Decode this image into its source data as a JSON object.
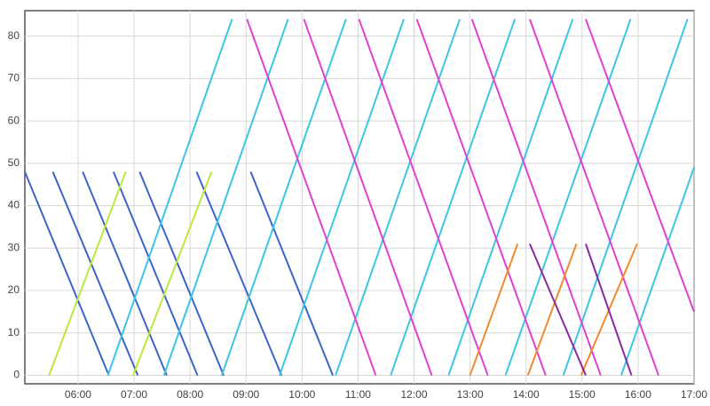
{
  "chart_data": {
    "type": "line",
    "grid": true,
    "xlim": [
      303,
      1020
    ],
    "ylim": [
      -2,
      86
    ],
    "xticks": [
      {
        "value": 360,
        "label": "06:00"
      },
      {
        "value": 420,
        "label": "07:00"
      },
      {
        "value": 480,
        "label": "08:00"
      },
      {
        "value": 540,
        "label": "09:00"
      },
      {
        "value": 600,
        "label": "10:00"
      },
      {
        "value": 660,
        "label": "11:00"
      },
      {
        "value": 720,
        "label": "12:00"
      },
      {
        "value": 780,
        "label": "13:00"
      },
      {
        "value": 840,
        "label": "14:00"
      },
      {
        "value": 900,
        "label": "15:00"
      },
      {
        "value": 960,
        "label": "16:00"
      },
      {
        "value": 1020,
        "label": "17:00"
      }
    ],
    "yticks": [
      0,
      10,
      20,
      30,
      40,
      50,
      60,
      70,
      80
    ],
    "series": [
      {
        "color": "#3f63c8",
        "x": [
          303,
          393
        ],
        "values": [
          48,
          0
        ]
      },
      {
        "color": "#3f63c8",
        "x": [
          333,
          424
        ],
        "values": [
          48,
          0
        ]
      },
      {
        "color": "#3f63c8",
        "x": [
          365,
          455
        ],
        "values": [
          48,
          0
        ]
      },
      {
        "color": "#3f63c8",
        "x": [
          398,
          488
        ],
        "values": [
          48,
          0
        ]
      },
      {
        "color": "#3f63c8",
        "x": [
          426,
          516
        ],
        "values": [
          48,
          0
        ]
      },
      {
        "color": "#3f63c8",
        "x": [
          487,
          578
        ],
        "values": [
          48,
          0
        ]
      },
      {
        "color": "#3f63c8",
        "x": [
          545,
          633
        ],
        "values": [
          48,
          0
        ]
      },
      {
        "color": "#3cc6e2",
        "x": [
          392,
          525
        ],
        "values": [
          0,
          84
        ]
      },
      {
        "color": "#3cc6e2",
        "x": [
          452,
          585
        ],
        "values": [
          0,
          84
        ]
      },
      {
        "color": "#3cc6e2",
        "x": [
          514,
          647
        ],
        "values": [
          0,
          84
        ]
      },
      {
        "color": "#3cc6e2",
        "x": [
          576,
          709
        ],
        "values": [
          0,
          84
        ]
      },
      {
        "color": "#3cc6e2",
        "x": [
          636,
          769
        ],
        "values": [
          0,
          84
        ]
      },
      {
        "color": "#3cc6e2",
        "x": [
          695,
          828
        ],
        "values": [
          0,
          84
        ]
      },
      {
        "color": "#3cc6e2",
        "x": [
          757,
          890
        ],
        "values": [
          0,
          84
        ]
      },
      {
        "color": "#3cc6e2",
        "x": [
          818,
          952
        ],
        "values": [
          0,
          84
        ]
      },
      {
        "color": "#3cc6e2",
        "x": [
          880,
          1013
        ],
        "values": [
          0,
          84
        ]
      },
      {
        "color": "#3cc6e2",
        "x": [
          942,
          1020
        ],
        "values": [
          0,
          49
        ]
      },
      {
        "color": "#e040d2",
        "x": [
          541,
          679
        ],
        "values": [
          84,
          0
        ]
      },
      {
        "color": "#e040d2",
        "x": [
          602,
          739
        ],
        "values": [
          84,
          0
        ]
      },
      {
        "color": "#e040d2",
        "x": [
          661,
          799
        ],
        "values": [
          84,
          0
        ]
      },
      {
        "color": "#e040d2",
        "x": [
          723,
          861
        ],
        "values": [
          84,
          0
        ]
      },
      {
        "color": "#e040d2",
        "x": [
          782,
          920
        ],
        "values": [
          84,
          0
        ]
      },
      {
        "color": "#e040d2",
        "x": [
          844,
          982
        ],
        "values": [
          84,
          0
        ]
      },
      {
        "color": "#e040d2",
        "x": [
          904,
          1020
        ],
        "values": [
          84,
          15
        ]
      },
      {
        "color": "#bde83a",
        "x": [
          329,
          411
        ],
        "values": [
          0,
          48
        ]
      },
      {
        "color": "#bde83a",
        "x": [
          419,
          503
        ],
        "values": [
          0,
          48
        ]
      },
      {
        "color": "#f08a30",
        "x": [
          780,
          831
        ],
        "values": [
          0,
          31
        ]
      },
      {
        "color": "#f08a30",
        "x": [
          842,
          894
        ],
        "values": [
          0,
          31
        ]
      },
      {
        "color": "#f08a30",
        "x": [
          899,
          959
        ],
        "values": [
          0,
          31
        ]
      },
      {
        "color": "#8a2aa0",
        "x": [
          844,
          904
        ],
        "values": [
          31,
          0
        ]
      },
      {
        "color": "#8a2aa0",
        "x": [
          904,
          953
        ],
        "values": [
          31,
          0
        ]
      }
    ]
  }
}
